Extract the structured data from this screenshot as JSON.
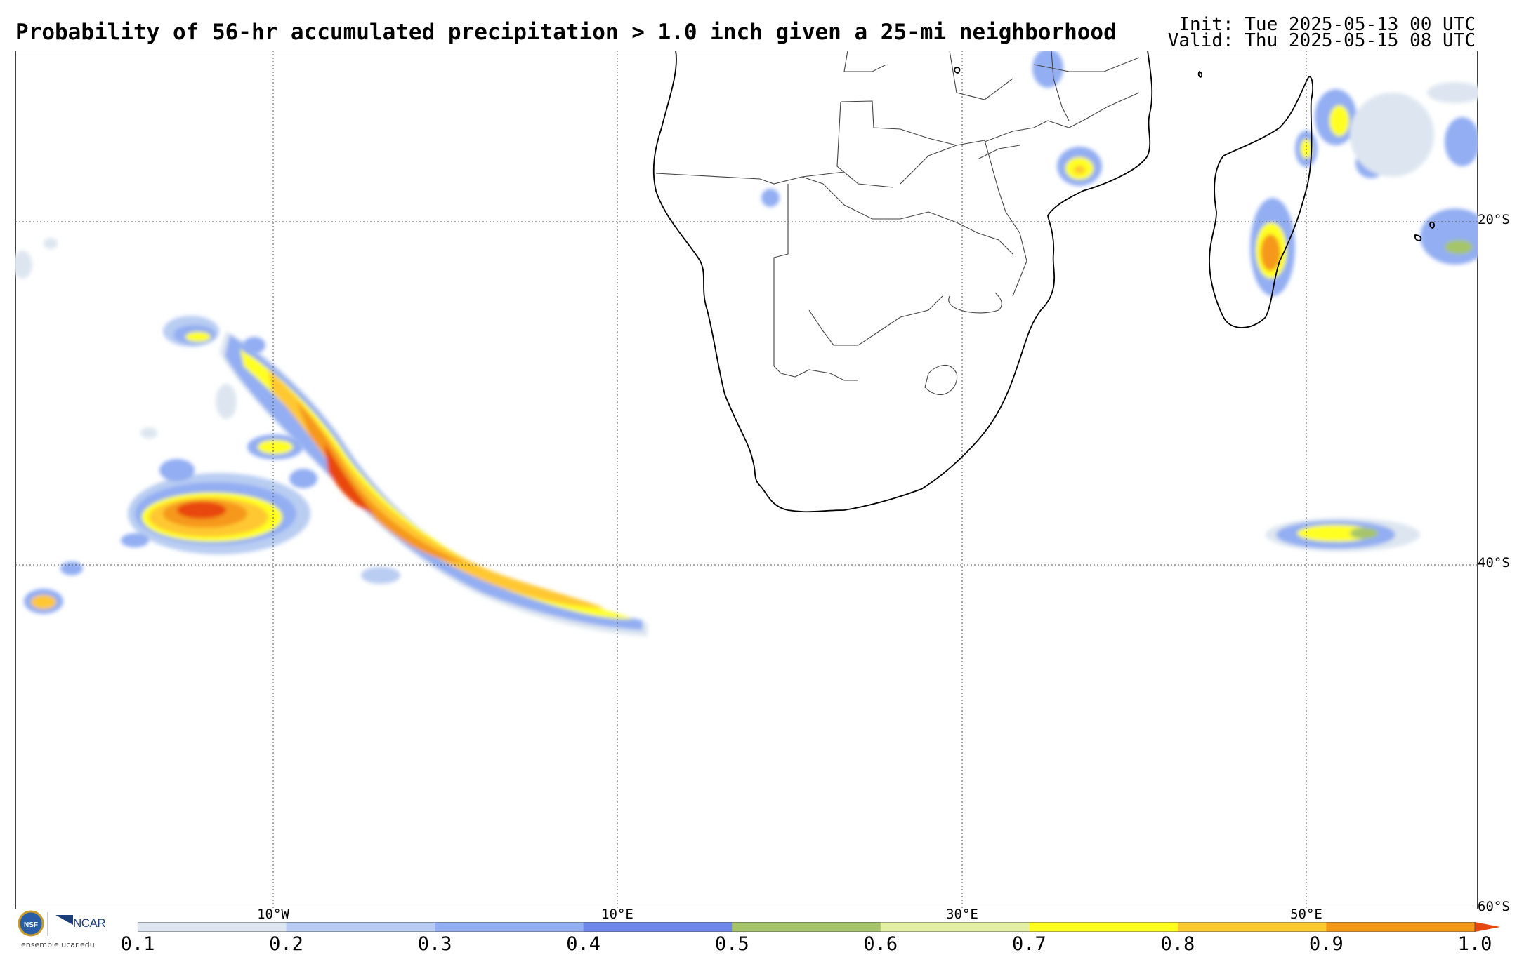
{
  "header": {
    "title": "Probability of 56-hr accumulated precipitation > 1.0 inch given a 25-mi neighborhood",
    "init": "Init: Tue 2025-05-13 00 UTC",
    "valid": "Valid: Thu 2025-05-15 08 UTC"
  },
  "axes": {
    "lat_labels": [
      "20°S",
      "40°S",
      "60°S"
    ],
    "lon_labels": [
      "10°W",
      "10°E",
      "30°E",
      "50°E"
    ]
  },
  "colorbar": {
    "ticks": [
      "0.1",
      "0.2",
      "0.3",
      "0.4",
      "0.5",
      "0.6",
      "0.7",
      "0.8",
      "0.9",
      "1.0"
    ],
    "colors": [
      "#dde6f0",
      "#b9cdf2",
      "#93aef2",
      "#6f86ec",
      "#a6c56a",
      "#e3f0a2",
      "#ffff20",
      "#ffc830",
      "#f5981a"
    ]
  },
  "branding": {
    "logo_left": "NSF",
    "logo_right": "NCAR",
    "url": "ensemble.ucar.edu"
  }
}
